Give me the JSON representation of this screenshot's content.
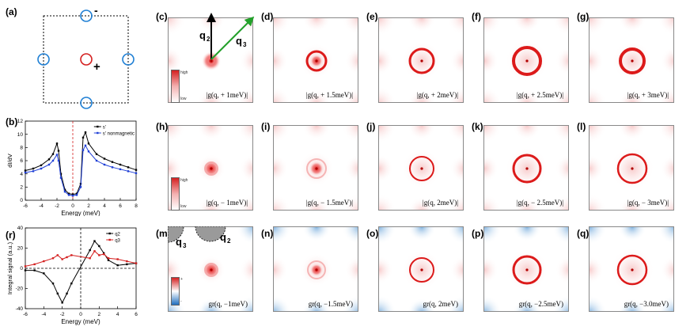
{
  "panel_labels": {
    "a": "(a)",
    "b": "(b)",
    "r": "(r)",
    "c": "(c)",
    "d": "(d)",
    "e": "(e)",
    "f": "(f)",
    "g": "(g)",
    "h": "(h)",
    "i": "(i)",
    "j": "(j)",
    "k": "(k)",
    "l": "(l)",
    "m": "(m)",
    "n": "(n)",
    "o": "(o)",
    "p": "(p)",
    "q": "(q)"
  },
  "schematic": {
    "minus": "-",
    "plus": "+"
  },
  "colorbar": {
    "high": "high",
    "low": "low",
    "plus": "+",
    "minus": "-"
  },
  "vectors": {
    "q2": "q",
    "q2_sub": "2",
    "q3": "q",
    "q3_sub": "3"
  },
  "mask_labels": {
    "q3": "q",
    "q3_sub": "3",
    "q2": "q",
    "q2_sub": "2"
  },
  "captions": {
    "c": "|g(q, + 1meV)|",
    "d": "|g(q, + 1.5meV)|",
    "e": "|g(q, + 2meV)|",
    "f": "|g(q, + 2.5meV)|",
    "g": "|g(q, + 3meV)|",
    "h": "|g(q, − 1meV)|",
    "i": "|g(q, − 1.5meV)|",
    "j": "|g(q,   2meV)|",
    "k": "|g(q, − 2.5meV)|",
    "l": "|g(q, − 3meV)|",
    "m": "gr(q, −1meV)",
    "n": "gr(q, −1.5meV)",
    "o": "gr(q,   2meV)",
    "p": "gr(q, −2.5meV)",
    "q": "gr(q, −3.0meV)"
  },
  "chart_data": [
    {
      "id": "b",
      "type": "line",
      "xlabel": "Energy (meV)",
      "ylabel": "dI/dV",
      "xlim": [
        -6,
        8
      ],
      "ylim": [
        0,
        12
      ],
      "xticks": [
        "-6",
        "-4",
        "-2",
        "0",
        "2",
        "4",
        "6",
        "8"
      ],
      "yticks": [
        "0",
        "2",
        "4",
        "6",
        "8",
        "10",
        "12"
      ],
      "legend": [
        "s'",
        "s' nonmagnetic"
      ],
      "series": [
        {
          "name": "s'",
          "color": "#000000",
          "x": [
            -6,
            -5,
            -4,
            -3,
            -2.5,
            -2,
            -1.8,
            -1.5,
            -1,
            -0.5,
            0,
            0.5,
            1,
            1.3,
            1.6,
            2,
            3,
            4,
            5,
            6,
            7,
            8
          ],
          "y": [
            4.5,
            4.8,
            5.3,
            6.2,
            7.0,
            8.6,
            7.5,
            4.0,
            1.6,
            1.0,
            0.9,
            1.0,
            2.5,
            9.5,
            10.3,
            8.6,
            7.0,
            6.3,
            5.8,
            5.4,
            5.0,
            4.6
          ]
        },
        {
          "name": "s' nonmagnetic",
          "color": "#1f3fd6",
          "x": [
            -6,
            -5,
            -4,
            -3,
            -2.5,
            -2,
            -1.8,
            -1.5,
            -1,
            -0.5,
            0,
            0.5,
            1,
            1.3,
            1.6,
            2,
            3,
            4,
            5,
            6,
            7,
            8
          ],
          "y": [
            4.2,
            4.4,
            4.8,
            5.4,
            6.0,
            6.9,
            6.0,
            3.4,
            1.3,
            0.8,
            0.7,
            0.8,
            2.0,
            7.6,
            8.3,
            7.4,
            6.0,
            5.4,
            5.0,
            4.7,
            4.4,
            4.1
          ]
        }
      ]
    },
    {
      "id": "r",
      "type": "line",
      "xlabel": "Energy (meV)",
      "ylabel": "Integral signal (a.u.)",
      "xlim": [
        -6,
        6
      ],
      "ylim": [
        -40,
        40
      ],
      "xticks": [
        "-6",
        "-4",
        "-2",
        "0",
        "2",
        "4",
        "6"
      ],
      "yticks": [
        "-40",
        "-20",
        "0",
        "20",
        "40"
      ],
      "legend": [
        "q2",
        "q3"
      ],
      "series": [
        {
          "name": "q2",
          "color": "#000000",
          "x": [
            -6,
            -5,
            -4,
            -3,
            -2.5,
            -2,
            -1.5,
            -1,
            1,
            1.5,
            2,
            2.5,
            3,
            4,
            5,
            6
          ],
          "y": [
            -2,
            -2,
            -5,
            -15,
            -25,
            -34,
            -25,
            -15,
            18,
            27,
            22,
            15,
            8,
            3,
            4,
            5
          ]
        },
        {
          "name": "q3",
          "color": "#d42020",
          "x": [
            -6,
            -5,
            -4,
            -3,
            -2.5,
            -2,
            -1.5,
            -1,
            1,
            1.5,
            2,
            2.5,
            3,
            4,
            5,
            6
          ],
          "y": [
            2,
            4,
            7,
            10,
            13,
            9,
            11,
            13,
            10,
            17,
            13,
            14,
            10,
            9,
            7,
            5
          ]
        }
      ]
    }
  ]
}
